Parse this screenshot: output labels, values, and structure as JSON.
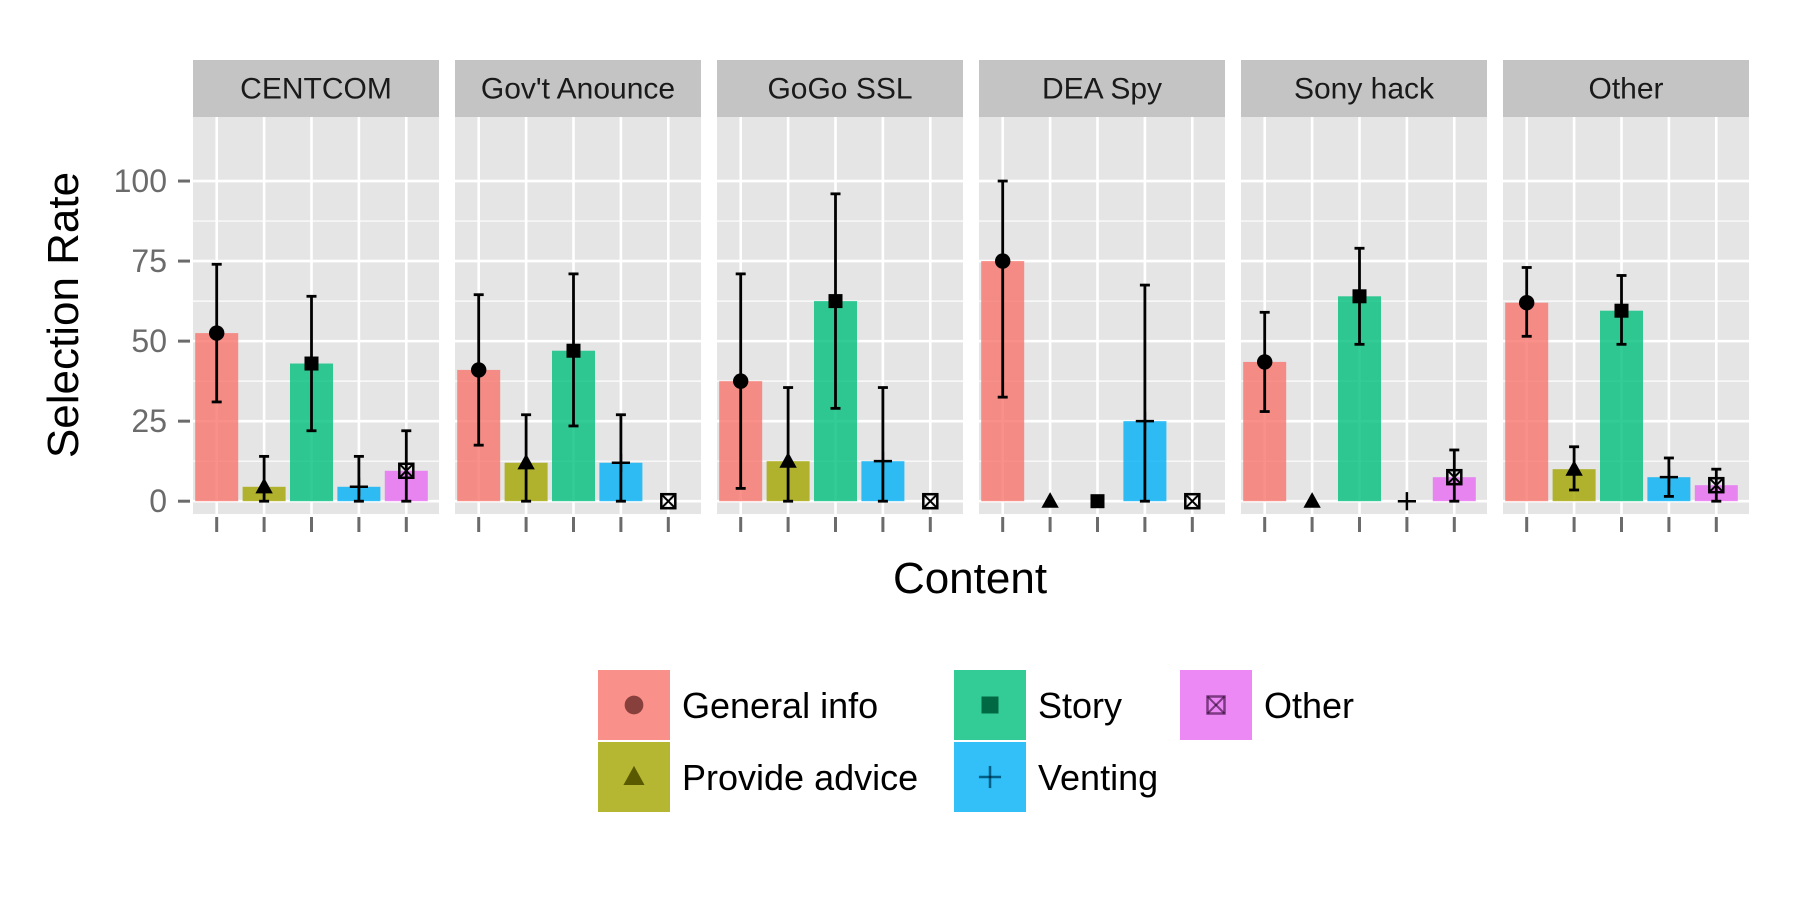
{
  "chart_data": {
    "type": "bar",
    "xlabel": "Content",
    "ylabel": "Selection Rate",
    "ylim": [
      -4,
      120
    ],
    "y_ticks": [
      {
        "value": 0,
        "label": "0"
      },
      {
        "value": 25,
        "label": "25"
      },
      {
        "value": 50,
        "label": "50"
      },
      {
        "value": 75,
        "label": "75"
      },
      {
        "value": 100,
        "label": "100"
      }
    ],
    "grid": true,
    "legend_position": "bottom",
    "categories": [
      "General info",
      "Provide advice",
      "Story",
      "Venting",
      "Other"
    ],
    "series_styles": [
      {
        "name": "General info",
        "color": "#F8766D",
        "marker": "circle"
      },
      {
        "name": "Provide advice",
        "color": "#A3A500",
        "marker": "triangle"
      },
      {
        "name": "Story",
        "color": "#00BF7D",
        "marker": "square"
      },
      {
        "name": "Venting",
        "color": "#00B0F6",
        "marker": "plus"
      },
      {
        "name": "Other",
        "color": "#E76BF3",
        "marker": "square-x"
      }
    ],
    "panels": [
      {
        "title": "CENTCOM",
        "values": [
          52.5,
          4.5,
          43,
          4.5,
          9.5
        ],
        "lower": [
          31,
          0,
          22,
          0,
          0
        ],
        "upper": [
          74,
          14,
          64,
          14,
          22
        ]
      },
      {
        "title": "Gov't Anounce",
        "values": [
          41,
          12,
          47,
          12,
          0
        ],
        "lower": [
          17.5,
          0,
          23.5,
          0,
          null
        ],
        "upper": [
          64.5,
          27,
          71,
          27,
          null
        ]
      },
      {
        "title": "GoGo SSL",
        "values": [
          37.5,
          12.5,
          62.5,
          12.5,
          0
        ],
        "lower": [
          4,
          0,
          29,
          0,
          null
        ],
        "upper": [
          71,
          35.5,
          96,
          35.5,
          null
        ]
      },
      {
        "title": "DEA Spy",
        "values": [
          75,
          0,
          0,
          25,
          0
        ],
        "lower": [
          32.5,
          null,
          null,
          0,
          null
        ],
        "upper": [
          100,
          null,
          null,
          67.5,
          null
        ]
      },
      {
        "title": "Sony hack",
        "values": [
          43.5,
          0,
          64,
          0,
          7.5
        ],
        "lower": [
          28,
          null,
          49,
          null,
          0
        ],
        "upper": [
          59,
          null,
          79,
          null,
          16
        ]
      },
      {
        "title": "Other",
        "values": [
          62,
          10,
          59.5,
          7.5,
          5
        ],
        "lower": [
          51.5,
          3.5,
          49,
          1.5,
          0
        ],
        "upper": [
          73,
          17,
          70.5,
          13.5,
          10
        ]
      }
    ]
  },
  "colors": {
    "panel_background": "#E5E5E5",
    "strip_background": "#C4C4C4",
    "grid": "#FFFFFF",
    "error_bar": "#000000"
  }
}
